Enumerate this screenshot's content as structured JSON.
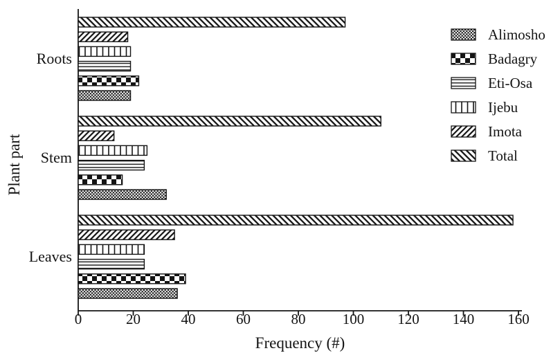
{
  "chart_data": {
    "type": "bar",
    "orientation": "horizontal",
    "title": "",
    "xlabel": "Frequency (#)",
    "ylabel": "Plant part",
    "xlim": [
      0,
      160
    ],
    "xticks": [
      0,
      20,
      40,
      60,
      80,
      100,
      120,
      140,
      160
    ],
    "grid": false,
    "legend_position": "top-right",
    "ink_color": "#141414",
    "background_color": "#ffffff",
    "categories": [
      "Roots",
      "Stem",
      "Leaves"
    ],
    "series": [
      {
        "name": "Alimosho",
        "pattern": "fine-checker",
        "values": [
          19,
          32,
          36
        ]
      },
      {
        "name": "Badagry",
        "pattern": "checker",
        "values": [
          22,
          16,
          39
        ]
      },
      {
        "name": "Eti-Osa",
        "pattern": "hlines",
        "values": [
          19,
          24,
          24
        ]
      },
      {
        "name": "Ijebu",
        "pattern": "vlines",
        "values": [
          19,
          25,
          24
        ]
      },
      {
        "name": "Imota",
        "pattern": "diag-up",
        "values": [
          18,
          13,
          35
        ]
      },
      {
        "name": "Total",
        "pattern": "diag-down",
        "values": [
          97,
          110,
          158
        ]
      }
    ]
  }
}
